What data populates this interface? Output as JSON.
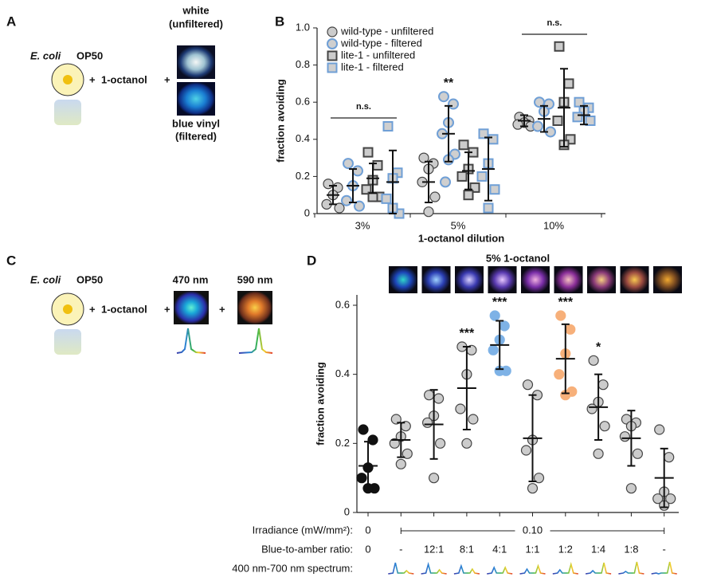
{
  "panel_labels": [
    "A",
    "B",
    "C",
    "D"
  ],
  "panel_a": {
    "strain_italic": "E. coli",
    "strain": "OP50",
    "plus": "+",
    "odorant": "1-octanol",
    "white": "white",
    "white_sub": "(unfiltered)",
    "blue": "blue vinyl",
    "blue_sub": "(filtered)"
  },
  "panel_c": {
    "strain_italic": "E. coli",
    "strain": "OP50",
    "plus": "+",
    "odorant": "1-octanol",
    "wl1": "470 nm",
    "wl2": "590 nm"
  },
  "chart_data": [
    {
      "type": "strip",
      "ylabel": "fraction avoiding",
      "xlabel": "1-octanol dilution",
      "categories": [
        "3%",
        "5%",
        "10%"
      ],
      "ylim": [
        0,
        1.0
      ],
      "yticks": [
        0,
        0.2,
        0.4,
        0.6,
        0.8,
        {
          "value": 1.0,
          "label": "1.0"
        }
      ],
      "annotations": [
        "n.s.",
        "**",
        "n.s."
      ],
      "series": [
        {
          "name": "wild-type - unfiltered",
          "marker": "circle",
          "color": "#444444",
          "fill": "#cccccc",
          "values": [
            [
              0.16,
              0.14,
              0.1,
              0.05,
              0.03
            ],
            [
              0.3,
              0.27,
              0.24,
              0.17,
              0.09,
              0.01
            ],
            [
              0.52,
              0.5,
              0.49,
              0.48,
              0.47
            ]
          ],
          "mean": [
            0.1,
            0.17,
            0.5
          ],
          "sd": [
            0.05,
            0.11,
            0.03
          ]
        },
        {
          "name": "wild-type - filtered",
          "marker": "circle",
          "color": "#6f9fd6",
          "fill": "#cfcfcf",
          "values": [
            [
              0.27,
              0.23,
              0.15,
              0.07,
              0.04
            ],
            [
              0.63,
              0.59,
              0.49,
              0.43,
              0.32,
              0.29,
              0.17
            ],
            [
              0.6,
              0.59,
              0.55,
              0.47,
              0.44
            ]
          ],
          "mean": [
            0.15,
            0.43,
            0.51
          ],
          "sd": [
            0.09,
            0.15,
            0.07
          ]
        },
        {
          "name": "lite-1 - unfiltered",
          "marker": "square",
          "color": "#444444",
          "fill": "#cccccc",
          "values": [
            [
              0.33,
              0.26,
              0.18,
              0.13,
              0.09,
              0.09
            ],
            [
              0.37,
              0.33,
              0.24,
              0.2,
              0.14,
              0.1
            ],
            [
              0.9,
              0.7,
              0.6,
              0.5,
              0.4,
              0.37
            ]
          ],
          "mean": [
            0.19,
            0.23,
            0.57
          ],
          "sd": [
            0.08,
            0.1,
            0.21
          ]
        },
        {
          "name": "lite-1 - filtered",
          "marker": "square",
          "color": "#6f9fd6",
          "fill": "#cfcfcf",
          "values": [
            [
              0.47,
              0.22,
              0.19,
              0.08,
              0.0,
              0.03
            ],
            [
              0.43,
              0.4,
              0.27,
              0.2,
              0.13,
              0.03
            ],
            [
              0.6,
              0.57,
              0.55,
              0.52,
              0.5
            ]
          ],
          "mean": [
            0.17,
            0.24,
            0.53
          ],
          "sd": [
            0.17,
            0.17,
            0.05
          ]
        }
      ]
    },
    {
      "type": "strip",
      "title": "5% 1-octanol",
      "ylabel": "fraction avoiding",
      "categories": [
        null,
        null,
        null,
        null,
        null,
        null,
        null,
        null,
        null,
        null
      ],
      "ylim": [
        0,
        0.63
      ],
      "yticks": [
        0,
        0.2,
        0.4,
        0.6
      ],
      "colors": [
        "#111111",
        "#cccccc",
        "#cccccc",
        "#cccccc",
        "#7eb2e6",
        "#cccccc",
        "#f7b07a",
        "#cccccc",
        "#cccccc",
        "#cccccc"
      ],
      "values": [
        [
          0.24,
          0.21,
          0.13,
          0.1,
          0.07,
          0.07
        ],
        [
          0.27,
          0.25,
          0.22,
          0.2,
          0.17,
          0.14
        ],
        [
          0.34,
          0.33,
          0.28,
          0.26,
          0.2,
          0.1
        ],
        [
          0.48,
          0.47,
          0.4,
          0.3,
          0.27,
          0.2
        ],
        [
          0.57,
          0.54,
          0.5,
          0.47,
          0.41,
          0.41
        ],
        [
          0.37,
          0.34,
          0.21,
          0.18,
          0.1,
          0.07
        ],
        [
          0.57,
          0.53,
          0.46,
          0.4,
          0.35,
          0.34
        ],
        [
          0.44,
          0.37,
          0.32,
          0.3,
          0.25,
          0.17
        ],
        [
          0.27,
          0.26,
          0.25,
          0.22,
          0.17,
          0.07
        ],
        [
          0.24,
          0.16,
          0.06,
          0.04,
          0.04,
          0.02
        ]
      ],
      "mean": [
        0.135,
        0.21,
        0.255,
        0.36,
        0.485,
        0.215,
        0.445,
        0.305,
        0.215,
        0.1
      ],
      "sd": [
        0.07,
        0.05,
        0.1,
        0.12,
        0.07,
        0.125,
        0.1,
        0.095,
        0.08,
        0.085
      ],
      "significance": [
        null,
        null,
        null,
        "***",
        "***",
        null,
        "***",
        "*",
        null,
        null
      ],
      "rows": [
        {
          "label": "Irradiance (mW/mm²):",
          "values": [
            "0",
            "0.10"
          ]
        },
        {
          "label": "Blue-to-amber ratio:",
          "values": [
            "0",
            "-",
            "12:1",
            "8:1",
            "4:1",
            "1:1",
            "1:2",
            "1:4",
            "1:8",
            "-"
          ]
        },
        {
          "label": "400 nm-700 nm spectrum:"
        }
      ]
    }
  ]
}
